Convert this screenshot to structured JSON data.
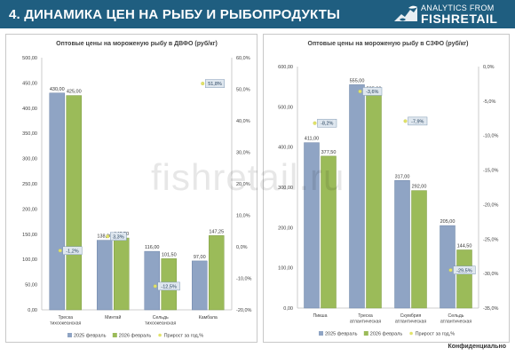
{
  "header": {
    "title": "4. ДИНАМИКА ЦЕН НА РЫБУ И РЫБОПРОДУКТЫ",
    "logo_line1": "ANALYTICS FROM",
    "logo_line2": "FISHRETAIL",
    "logo_icon": "fish-icon"
  },
  "watermark": "fishretail.ru",
  "footer": {
    "note": "Конфиденциально"
  },
  "colors": {
    "header_bg": "#1f5e80",
    "series_2025": "#8fa4c4",
    "series_2026": "#9bbb59",
    "growth_marker": "#e2e36a"
  },
  "chart_data": [
    {
      "type": "bar",
      "title": "Оптовые цены на мороженую рыбу в ДВФО (руб/кг)",
      "categories": [
        [
          "Треска",
          "тихоокеанская"
        ],
        [
          "Минтай"
        ],
        [
          "Сельдь",
          "тихоокеанская"
        ],
        [
          "Камбала"
        ]
      ],
      "series": [
        {
          "name": "2025 февраль",
          "values": [
            430.0,
            138.0,
            116.0,
            97.0
          ],
          "labels": [
            "430,00",
            "138,00",
            "116,00",
            "97,00"
          ]
        },
        {
          "name": "2026 февраль",
          "values": [
            425.0,
            142.5,
            101.5,
            147.25
          ],
          "labels": [
            "425,00",
            "142,50",
            "101,50",
            "147,25"
          ]
        }
      ],
      "growth": {
        "name": "Прирост за год,%",
        "values": [
          -1.2,
          3.3,
          -12.5,
          51.8
        ],
        "labels": [
          "-1,2%",
          "3,3%",
          "-12,5%",
          "51,8%"
        ]
      },
      "ylim": [
        0,
        500
      ],
      "yticks": [
        "0,00",
        "50,00",
        "100,00",
        "150,00",
        "200,00",
        "250,00",
        "300,00",
        "350,00",
        "400,00",
        "450,00",
        "500,00"
      ],
      "y2lim": [
        -20,
        60
      ],
      "y2ticks": [
        "-20,0%",
        "-10,0%",
        "0,0%",
        "10,0%",
        "20,0%",
        "30,0%",
        "40,0%",
        "50,0%",
        "60,0%"
      ],
      "legend_position": "bottom"
    },
    {
      "type": "bar",
      "title": "Оптовые цены на мороженую рыбу в СЗФО (руб/кг)",
      "categories": [
        [
          "Пикша"
        ],
        [
          "Треска",
          "атлантическая"
        ],
        [
          "Скумбрия",
          "атлантическая"
        ],
        [
          "Сельдь",
          "атлантическая"
        ]
      ],
      "series": [
        {
          "name": "2025 февраль",
          "values": [
            411.0,
            555.0,
            317.0,
            205.0
          ],
          "labels": [
            "411,00",
            "555,00",
            "317,00",
            "205,00"
          ]
        },
        {
          "name": "2026 февраль",
          "values": [
            377.5,
            535.0,
            292.0,
            144.5
          ],
          "labels": [
            "377,50",
            "535,00",
            "292,00",
            "144,50"
          ]
        }
      ],
      "growth": {
        "name": "Прирост за год,%",
        "values": [
          -8.2,
          -3.6,
          -7.9,
          -29.5
        ],
        "labels": [
          "-8,2%",
          "-3,6%",
          "-7,9%",
          "-29,5%"
        ]
      },
      "ylim": [
        0,
        600
      ],
      "yticks": [
        "0,00",
        "100,00",
        "200,00",
        "300,00",
        "400,00",
        "500,00",
        "600,00"
      ],
      "y2lim": [
        -35,
        0
      ],
      "y2ticks": [
        "-35,0%",
        "-30,0%",
        "-25,0%",
        "-20,0%",
        "-15,0%",
        "-10,0%",
        "-5,0%",
        "0,0%"
      ],
      "legend_position": "bottom"
    }
  ]
}
